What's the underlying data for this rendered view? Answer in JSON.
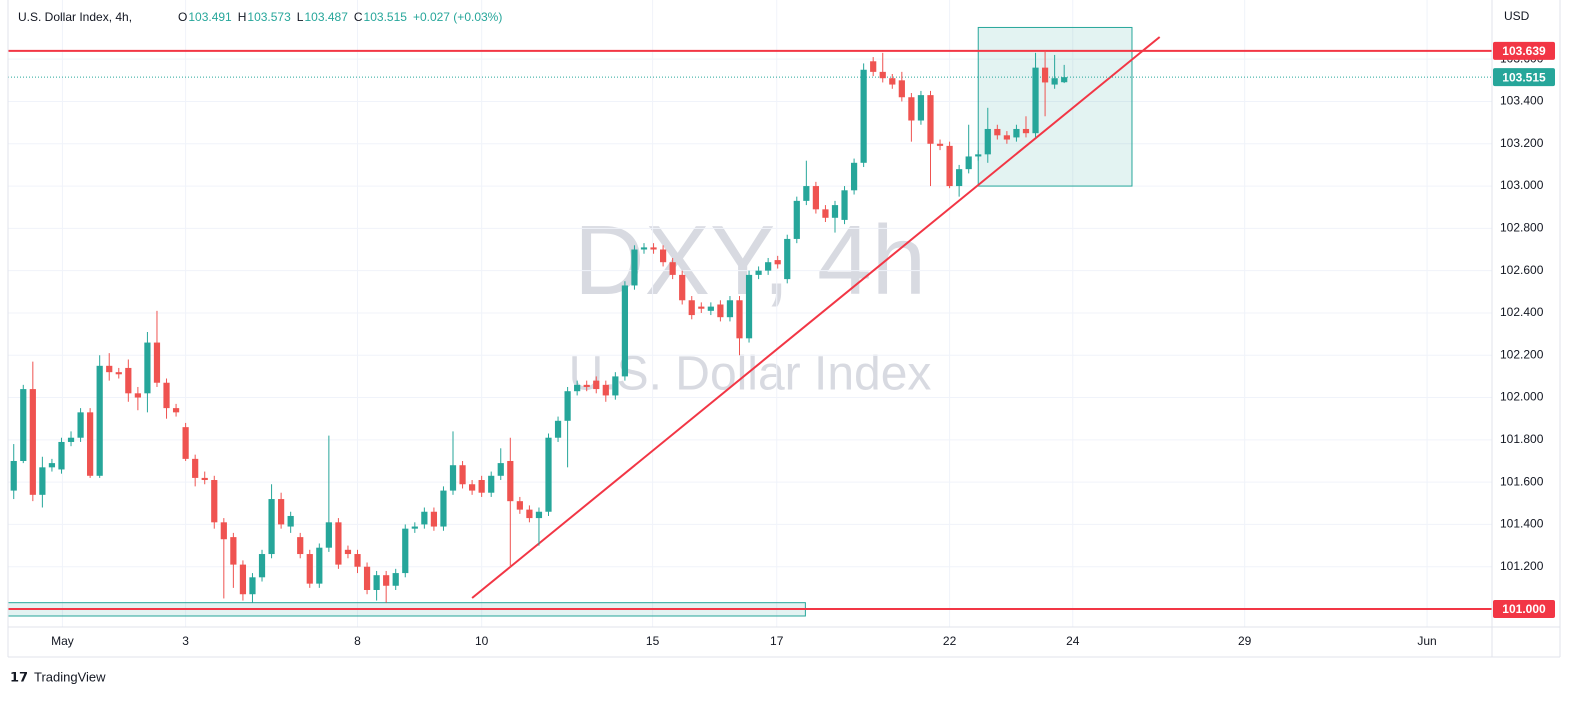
{
  "chart_data": {
    "type": "candlestick",
    "header": {
      "symbol": "U.S. Dollar Index, 4h,",
      "open_label": "O",
      "high_label": "H",
      "low_label": "L",
      "close_label": "C",
      "change": "+0.027 (+0.03%)"
    },
    "watermark": {
      "ticker": "DXY, 4h",
      "name": "U.S. Dollar Index"
    },
    "currency": "USD",
    "brand": "TradingView",
    "up_color": "#26a69a",
    "down_color": "#ef5350",
    "grid": true,
    "xlim": [
      -0.6,
      154.8
    ],
    "xticks": [
      {
        "value": 5.1,
        "label": "May"
      },
      {
        "value": 18.0,
        "label": "3"
      },
      {
        "value": 36.0,
        "label": "8"
      },
      {
        "value": 49.0,
        "label": "10"
      },
      {
        "value": 66.9,
        "label": "15"
      },
      {
        "value": 79.9,
        "label": "17"
      },
      {
        "value": 98.0,
        "label": "22"
      },
      {
        "value": 110.9,
        "label": "24"
      },
      {
        "value": 128.9,
        "label": "29"
      },
      {
        "value": 148.0,
        "label": "Jun"
      }
    ],
    "ylim": [
      100.915,
      103.842
    ],
    "yticks": [
      {
        "value": 101.2,
        "label": "101.200"
      },
      {
        "value": 101.4,
        "label": "101.400"
      },
      {
        "value": 101.6,
        "label": "101.600"
      },
      {
        "value": 101.8,
        "label": "101.800"
      },
      {
        "value": 102.0,
        "label": "102.000"
      },
      {
        "value": 102.2,
        "label": "102.200"
      },
      {
        "value": 102.4,
        "label": "102.400"
      },
      {
        "value": 102.6,
        "label": "102.600"
      },
      {
        "value": 102.8,
        "label": "102.800"
      },
      {
        "value": 103.0,
        "label": "103.000"
      },
      {
        "value": 103.2,
        "label": "103.200"
      },
      {
        "value": 103.4,
        "label": "103.400"
      },
      {
        "value": 103.6,
        "label": "103.600"
      }
    ],
    "candles": [
      [
        101.56,
        101.78,
        101.52,
        101.7
      ],
      [
        101.7,
        102.06,
        101.69,
        102.04
      ],
      [
        102.04,
        102.17,
        101.51,
        101.54
      ],
      [
        101.54,
        101.72,
        101.48,
        101.67
      ],
      [
        101.67,
        101.71,
        101.65,
        101.69
      ],
      [
        101.66,
        101.81,
        101.64,
        101.79
      ],
      [
        101.79,
        101.84,
        101.77,
        101.81
      ],
      [
        101.81,
        101.95,
        101.79,
        101.93
      ],
      [
        101.93,
        101.95,
        101.62,
        101.63
      ],
      [
        101.63,
        102.2,
        101.62,
        102.15
      ],
      [
        102.15,
        102.21,
        102.08,
        102.12
      ],
      [
        102.12,
        102.14,
        102.09,
        102.11
      ],
      [
        102.14,
        102.18,
        101.98,
        102.02
      ],
      [
        102.02,
        102.05,
        101.94,
        102.0
      ],
      [
        102.02,
        102.31,
        101.93,
        102.26
      ],
      [
        102.26,
        102.41,
        102.05,
        102.07
      ],
      [
        102.07,
        102.09,
        101.9,
        101.95
      ],
      [
        101.95,
        101.97,
        101.91,
        101.93
      ],
      [
        101.86,
        101.88,
        101.7,
        101.71
      ],
      [
        101.71,
        101.73,
        101.58,
        101.62
      ],
      [
        101.62,
        101.65,
        101.59,
        101.61
      ],
      [
        101.61,
        101.63,
        101.38,
        101.41
      ],
      [
        101.41,
        101.43,
        101.05,
        101.33
      ],
      [
        101.34,
        101.36,
        101.1,
        101.21
      ],
      [
        101.21,
        101.23,
        101.04,
        101.07
      ],
      [
        101.07,
        101.17,
        101.03,
        101.15
      ],
      [
        101.15,
        101.28,
        101.13,
        101.26
      ],
      [
        101.26,
        101.59,
        101.24,
        101.52
      ],
      [
        101.52,
        101.55,
        101.38,
        101.4
      ],
      [
        101.39,
        101.46,
        101.36,
        101.44
      ],
      [
        101.34,
        101.36,
        101.24,
        101.26
      ],
      [
        101.26,
        101.28,
        101.1,
        101.12
      ],
      [
        101.12,
        101.31,
        101.1,
        101.29
      ],
      [
        101.29,
        101.82,
        101.27,
        101.41
      ],
      [
        101.41,
        101.43,
        101.19,
        101.21
      ],
      [
        101.28,
        101.3,
        101.24,
        101.26
      ],
      [
        101.26,
        101.28,
        101.17,
        101.2
      ],
      [
        101.2,
        101.22,
        101.07,
        101.09
      ],
      [
        101.09,
        101.18,
        101.04,
        101.16
      ],
      [
        101.16,
        101.18,
        101.03,
        101.11
      ],
      [
        101.11,
        101.19,
        101.09,
        101.17
      ],
      [
        101.17,
        101.4,
        101.15,
        101.38
      ],
      [
        101.38,
        101.41,
        101.36,
        101.39
      ],
      [
        101.4,
        101.48,
        101.38,
        101.46
      ],
      [
        101.46,
        101.48,
        101.37,
        101.39
      ],
      [
        101.39,
        101.58,
        101.37,
        101.56
      ],
      [
        101.56,
        101.84,
        101.54,
        101.68
      ],
      [
        101.68,
        101.7,
        101.57,
        101.59
      ],
      [
        101.59,
        101.61,
        101.54,
        101.56
      ],
      [
        101.61,
        101.63,
        101.53,
        101.55
      ],
      [
        101.55,
        101.65,
        101.53,
        101.63
      ],
      [
        101.63,
        101.76,
        101.61,
        101.69
      ],
      [
        101.7,
        101.81,
        101.2,
        101.51
      ],
      [
        101.51,
        101.53,
        101.45,
        101.47
      ],
      [
        101.47,
        101.49,
        101.41,
        101.43
      ],
      [
        101.43,
        101.48,
        101.3,
        101.46
      ],
      [
        101.46,
        101.83,
        101.44,
        101.81
      ],
      [
        101.81,
        101.91,
        101.79,
        101.89
      ],
      [
        101.89,
        102.05,
        101.67,
        102.03
      ],
      [
        102.03,
        102.08,
        102.01,
        102.06
      ],
      [
        102.06,
        102.08,
        102.03,
        102.05
      ],
      [
        102.08,
        102.1,
        102.02,
        102.04
      ],
      [
        102.06,
        102.08,
        101.98,
        102.01
      ],
      [
        102.01,
        102.12,
        101.99,
        102.1
      ],
      [
        102.1,
        102.55,
        102.08,
        102.53
      ],
      [
        102.53,
        102.72,
        102.51,
        102.7
      ],
      [
        102.7,
        102.73,
        102.68,
        102.71
      ],
      [
        102.71,
        102.73,
        102.68,
        102.7
      ],
      [
        102.7,
        102.72,
        102.62,
        102.64
      ],
      [
        102.64,
        102.66,
        102.56,
        102.58
      ],
      [
        102.58,
        102.6,
        102.44,
        102.46
      ],
      [
        102.46,
        102.48,
        102.37,
        102.39
      ],
      [
        102.43,
        102.45,
        102.4,
        102.42
      ],
      [
        102.41,
        102.45,
        102.39,
        102.43
      ],
      [
        102.44,
        102.46,
        102.36,
        102.38
      ],
      [
        102.38,
        102.48,
        102.36,
        102.46
      ],
      [
        102.46,
        102.48,
        102.2,
        102.28
      ],
      [
        102.28,
        102.6,
        102.26,
        102.58
      ],
      [
        102.58,
        102.62,
        102.56,
        102.6
      ],
      [
        102.6,
        102.66,
        102.58,
        102.64
      ],
      [
        102.65,
        102.67,
        102.61,
        102.63
      ],
      [
        102.56,
        102.77,
        102.54,
        102.75
      ],
      [
        102.75,
        102.95,
        102.73,
        102.93
      ],
      [
        102.93,
        103.12,
        102.91,
        103.0
      ],
      [
        103.0,
        103.02,
        102.87,
        102.89
      ],
      [
        102.89,
        102.91,
        102.83,
        102.85
      ],
      [
        102.85,
        102.93,
        102.78,
        102.91
      ],
      [
        102.84,
        103.0,
        102.82,
        102.98
      ],
      [
        102.98,
        103.13,
        102.96,
        103.11
      ],
      [
        103.11,
        103.58,
        103.09,
        103.55
      ],
      [
        103.59,
        103.61,
        103.52,
        103.54
      ],
      [
        103.54,
        103.63,
        103.49,
        103.51
      ],
      [
        103.51,
        103.53,
        103.46,
        103.48
      ],
      [
        103.5,
        103.54,
        103.4,
        103.42
      ],
      [
        103.42,
        103.44,
        103.21,
        103.31
      ],
      [
        103.31,
        103.45,
        103.29,
        103.43
      ],
      [
        103.43,
        103.45,
        103.0,
        103.2
      ],
      [
        103.2,
        103.22,
        103.17,
        103.19
      ],
      [
        103.19,
        103.21,
        102.99,
        103.0
      ],
      [
        103.0,
        103.1,
        102.95,
        103.08
      ],
      [
        103.08,
        103.29,
        103.06,
        103.14
      ],
      [
        103.14,
        103.17,
        103.12,
        103.15
      ],
      [
        103.15,
        103.37,
        103.11,
        103.27
      ],
      [
        103.27,
        103.29,
        103.22,
        103.24
      ],
      [
        103.24,
        103.26,
        103.2,
        103.22
      ],
      [
        103.23,
        103.29,
        103.21,
        103.27
      ],
      [
        103.27,
        103.33,
        103.23,
        103.25
      ],
      [
        103.25,
        103.63,
        103.23,
        103.56
      ],
      [
        103.56,
        103.64,
        103.33,
        103.49
      ],
      [
        103.48,
        103.62,
        103.46,
        103.51
      ],
      [
        103.491,
        103.573,
        103.487,
        103.515
      ]
    ],
    "hlines": [
      {
        "value": 103.639,
        "color": "#f23645"
      },
      {
        "value": 101,
        "label": "101.000",
        "color": "#f23645"
      }
    ],
    "trendline": {
      "x": [
        48,
        120
      ],
      "y": [
        101.052,
        103.705
      ],
      "color": "#f23645"
    },
    "rectangles": [
      {
        "x": [
          101,
          117.1
        ],
        "y": [
          103.0,
          103.75
        ],
        "color": "#26a69a"
      },
      {
        "x": [
          -0.6,
          82.9
        ],
        "y": [
          100.967,
          101.03
        ],
        "color": "#26a69a"
      }
    ]
  }
}
